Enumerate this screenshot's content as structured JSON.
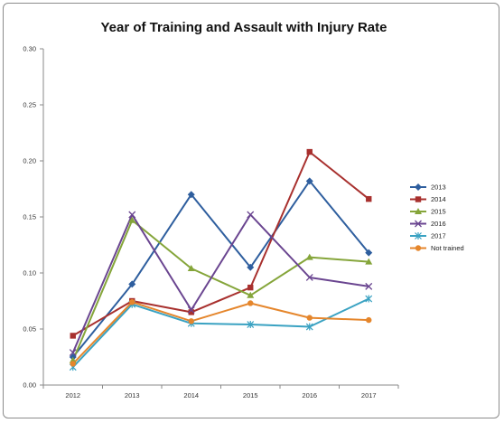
{
  "chart_data": {
    "type": "line",
    "title": "Year of Training and Assault with Injury Rate",
    "xlabel": "",
    "ylabel": "",
    "x": [
      "2012",
      "2013",
      "2014",
      "2015",
      "2016",
      "2017"
    ],
    "ylim": [
      0,
      0.3
    ],
    "yticks": [
      "0.00",
      "0.05",
      "0.10",
      "0.15",
      "0.20",
      "0.25",
      "0.30"
    ],
    "grid": false,
    "legend_position": "right",
    "series": [
      {
        "name": "2013",
        "color": "#2e5e9e",
        "marker": "diamond",
        "values": [
          0.025,
          0.09,
          0.17,
          0.105,
          0.182,
          0.118
        ]
      },
      {
        "name": "2014",
        "color": "#a8302e",
        "marker": "square",
        "values": [
          0.044,
          0.075,
          0.065,
          0.087,
          0.208,
          0.166
        ]
      },
      {
        "name": "2015",
        "color": "#85a53a",
        "marker": "triangle",
        "values": [
          0.022,
          0.147,
          0.104,
          0.08,
          0.114,
          0.11
        ]
      },
      {
        "name": "2016",
        "color": "#6a4590",
        "marker": "x",
        "values": [
          0.029,
          0.152,
          0.067,
          0.152,
          0.096,
          0.088
        ]
      },
      {
        "name": "2017",
        "color": "#3aa2c2",
        "marker": "star",
        "values": [
          0.016,
          0.072,
          0.055,
          0.054,
          0.052,
          0.077
        ]
      },
      {
        "name": "Not trained",
        "color": "#e5862c",
        "marker": "circle",
        "values": [
          0.019,
          0.074,
          0.057,
          0.073,
          0.06,
          0.058
        ]
      }
    ]
  }
}
